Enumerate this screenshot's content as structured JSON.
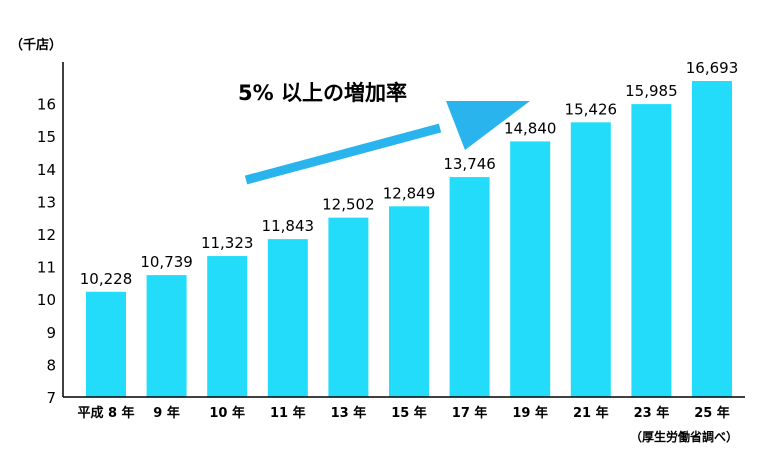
{
  "chart_data": {
    "type": "bar",
    "y_unit_label": "（千店）",
    "source_note": "（厚生労働省調べ）",
    "annotation": "5% 以上の増加率",
    "categories": [
      "平成 8 年",
      "9 年",
      "10 年",
      "11 年",
      "13 年",
      "15 年",
      "17 年",
      "19 年",
      "21 年",
      "23 年",
      "25 年"
    ],
    "values": [
      10228,
      10739,
      11323,
      11843,
      12502,
      12849,
      13746,
      14840,
      15426,
      15985,
      16693
    ],
    "value_labels": [
      "10,228",
      "10,739",
      "11,323",
      "11,843",
      "12,502",
      "12,849",
      "13,746",
      "14,840",
      "15,426",
      "15,985",
      "16,693"
    ],
    "yticks": [
      "7",
      "8",
      "9",
      "10",
      "11",
      "12",
      "13",
      "14",
      "15",
      "16"
    ],
    "ylim": [
      7,
      17
    ],
    "y_scale_factor": 1000,
    "grid": false,
    "bar_color": "#22dcf9",
    "arrow_color": "#29b4ee"
  }
}
